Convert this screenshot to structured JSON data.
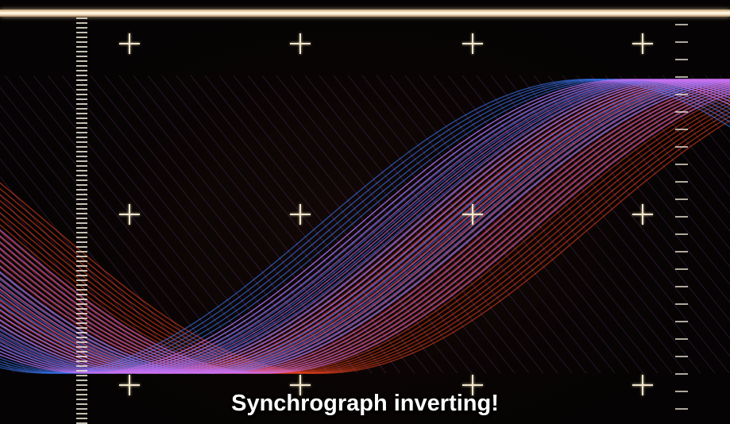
{
  "subtitle": {
    "line1": "Synchrograph inverting!",
    "line2": ""
  },
  "colors": {
    "background": "#050303",
    "red_trace": "#e8401c",
    "magenta_trace": "#d070f0",
    "blue_trace": "#3a7cff",
    "graticule": "#f2e6cc"
  }
}
